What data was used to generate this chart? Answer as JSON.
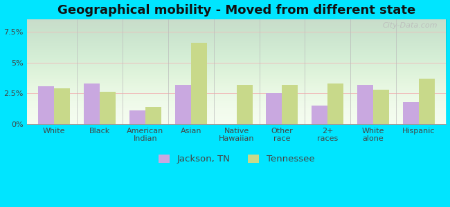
{
  "title": "Geographical mobility - Moved from different state",
  "categories": [
    "White",
    "Black",
    "American\nIndian",
    "Asian",
    "Native\nHawaiian",
    "Other\nrace",
    "2+\nraces",
    "White\nalone",
    "Hispanic"
  ],
  "jackson_values": [
    3.1,
    3.3,
    1.1,
    3.2,
    0.0,
    2.5,
    1.5,
    3.2,
    1.8
  ],
  "tennessee_values": [
    2.9,
    2.6,
    1.4,
    6.6,
    3.2,
    3.2,
    3.3,
    2.8,
    3.7
  ],
  "jackson_color": "#c9a8e0",
  "tennessee_color": "#c8d98a",
  "background_color": "#00e5ff",
  "yticks": [
    0.0,
    2.5,
    5.0,
    7.5
  ],
  "ylabels": [
    "0%",
    "2.5%",
    "5%",
    "7.5%"
  ],
  "ylim": [
    0,
    8.5
  ],
  "legend_jackson": "Jackson, TN",
  "legend_tennessee": "Tennessee",
  "bar_width": 0.35,
  "title_fontsize": 13,
  "tick_fontsize": 8,
  "legend_fontsize": 9.5,
  "watermark": "City-Data.com"
}
